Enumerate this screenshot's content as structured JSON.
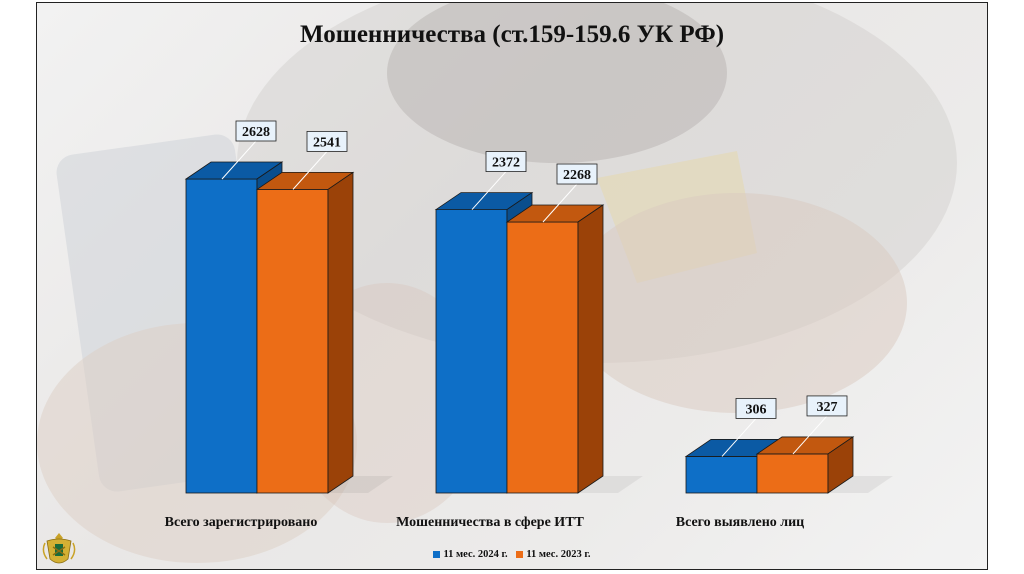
{
  "chart_data": {
    "type": "bar",
    "title": "Мошенничества (ст.159-159.6 УК РФ)",
    "categories": [
      "Всего зарегистрировано",
      "Мошенничества в сфере ИТТ",
      "Всего выявлено лиц"
    ],
    "series": [
      {
        "name": "11 мес. 2024 г.",
        "values": [
          2628,
          2372,
          306
        ],
        "color": "#0e6fc7"
      },
      {
        "name": "11 мес. 2023 г.",
        "values": [
          2541,
          2268,
          327
        ],
        "color": "#ec6d17"
      }
    ],
    "ylim": [
      0,
      2628
    ],
    "grid": false,
    "legend_position": "bottom",
    "style": "3d-column"
  },
  "colors": {
    "series_2024_side": "#0a4e8d",
    "series_2024_top": "#0b5aa4",
    "series_2023_side": "#9b4208",
    "series_2023_top": "#c2580f",
    "label_box_bg": "#e8f2fb"
  },
  "decor": {
    "emblem_icon": "prosecutor-emblem-icon",
    "background": "hands-with-phone-and-card-photo"
  }
}
